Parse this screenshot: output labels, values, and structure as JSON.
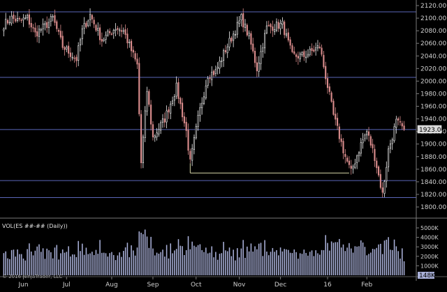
{
  "chart_data": {
    "type": "candlestick",
    "instrument_title": "VOL(ES ##-## (Daily))",
    "copyright": "© 2016 NinjaTrader, LLC",
    "last_price_label": "1923.00",
    "last_volume_label": "148K",
    "x_tick_labels": [
      "Jun",
      "Jul",
      "Aug",
      "Sep",
      "Oct",
      "Nov",
      "Dec",
      "16",
      "Feb"
    ],
    "price_axis": {
      "ylim": [
        1790,
        2125
      ],
      "tick_labels": [
        "2120.00",
        "2100.00",
        "2080.00",
        "2060.00",
        "2040.00",
        "2020.00",
        "2000.00",
        "1980.00",
        "1960.00",
        "1940.00",
        "1920.00",
        "1900.00",
        "1880.00",
        "1860.00",
        "1840.00",
        "1820.00",
        "1800.00"
      ]
    },
    "volume_axis": {
      "ylim": [
        0,
        6000
      ],
      "tick_labels": [
        "5000K",
        "4000K",
        "3000K",
        "2000K",
        "1000K"
      ]
    },
    "horizontal_lines": [
      2110,
      2006,
      1923,
      1842,
      1815
    ],
    "support_segment": {
      "from_date": "Sep 28",
      "to_date": "Jan 19",
      "price": 1854
    },
    "colors": {
      "background": "#000000",
      "up_candle": "#f2f2f2",
      "down_candle": "#d98c8c",
      "volume_bar": "#a9b0d8",
      "hline": "#5a66b8",
      "support_line": "#d8d8a8",
      "axis_text": "#d0d0d0",
      "separator": "#7a7a7a"
    },
    "anchors": [
      {
        "date": "May 18",
        "value": 2090
      },
      {
        "date": "May 22",
        "value": 2100
      },
      {
        "date": "May 28",
        "value": 2095
      },
      {
        "date": "Jun 3",
        "value": 2100
      },
      {
        "date": "Jun 9",
        "value": 2075
      },
      {
        "date": "Jun 17",
        "value": 2090
      },
      {
        "date": "Jun 22",
        "value": 2100
      },
      {
        "date": "Jun 29",
        "value": 2055
      },
      {
        "date": "Jul 8",
        "value": 2035
      },
      {
        "date": "Jul 13",
        "value": 2080
      },
      {
        "date": "Jul 17",
        "value": 2105
      },
      {
        "date": "Jul 27",
        "value": 2065
      },
      {
        "date": "Aug 5",
        "value": 2085
      },
      {
        "date": "Aug 11",
        "value": 2080
      },
      {
        "date": "Aug 20",
        "value": 2025
      },
      {
        "date": "Aug 24",
        "value": 1870
      },
      {
        "date": "Aug 27",
        "value": 1985
      },
      {
        "date": "Sep 1",
        "value": 1910
      },
      {
        "date": "Sep 9",
        "value": 1940
      },
      {
        "date": "Sep 17",
        "value": 1990
      },
      {
        "date": "Sep 24",
        "value": 1920
      },
      {
        "date": "Sep 28",
        "value": 1870
      },
      {
        "date": "Oct 2",
        "value": 1940
      },
      {
        "date": "Oct 9",
        "value": 2010
      },
      {
        "date": "Oct 15",
        "value": 2015
      },
      {
        "date": "Oct 22",
        "value": 2050
      },
      {
        "date": "Nov 3",
        "value": 2100
      },
      {
        "date": "Nov 9",
        "value": 2070
      },
      {
        "date": "Nov 13",
        "value": 2020
      },
      {
        "date": "Nov 20",
        "value": 2085
      },
      {
        "date": "Dec 2",
        "value": 2090
      },
      {
        "date": "Dec 9",
        "value": 2040
      },
      {
        "date": "Dec 17",
        "value": 2040
      },
      {
        "date": "Dec 29",
        "value": 2055
      },
      {
        "date": "Jan 7",
        "value": 1945
      },
      {
        "date": "Jan 15",
        "value": 1880
      },
      {
        "date": "Jan 20",
        "value": 1855
      },
      {
        "date": "Jan 27",
        "value": 1900
      },
      {
        "date": "Feb 1",
        "value": 1920
      },
      {
        "date": "Feb 5",
        "value": 1880
      },
      {
        "date": "Feb 11",
        "value": 1820
      },
      {
        "date": "Feb 16",
        "value": 1890
      },
      {
        "date": "Feb 22",
        "value": 1935
      },
      {
        "date": "Feb 26",
        "value": 1923
      }
    ]
  }
}
